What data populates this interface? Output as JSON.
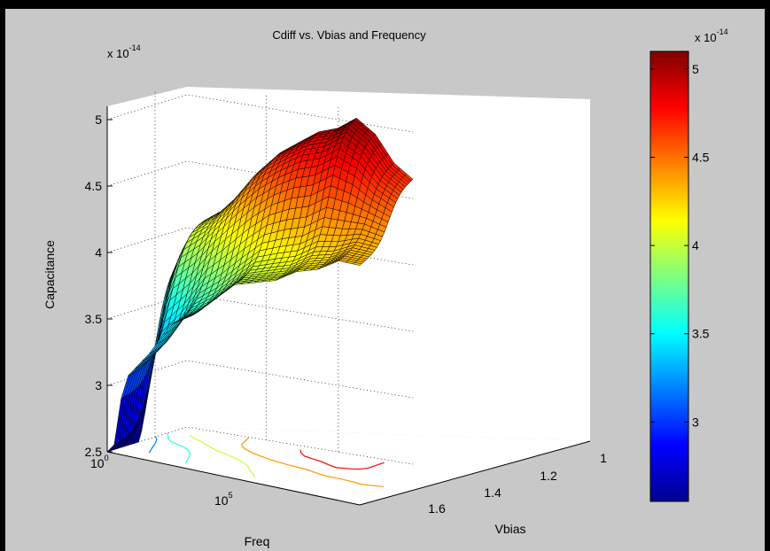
{
  "chart_data": {
    "type": "surface",
    "title": "Cdiff vs. Vbias and Frequency",
    "xlabel": "Vbias",
    "ylabel": "Freq",
    "zlabel": "Capacitance",
    "z_exponent_label": "x 10",
    "z_exponent_power": "-14",
    "x_ticks": [
      "1",
      "1.2",
      "1.4",
      "1.6"
    ],
    "y_ticks": [
      {
        "base": "10",
        "power": "0"
      },
      {
        "base": "10",
        "power": "5"
      }
    ],
    "z_ticks": [
      "2.5",
      "3",
      "3.5",
      "4",
      "4.5",
      "5"
    ],
    "zlim": [
      2.5,
      5.1
    ],
    "xlim": [
      1.0,
      1.6
    ],
    "colormap": "jet",
    "grid": true,
    "colorbar": {
      "ticks": [
        "3",
        "3.5",
        "4",
        "4.5",
        "5"
      ],
      "range": [
        2.55,
        5.1
      ],
      "exponent_label": "x 10",
      "exponent_power": "-14"
    },
    "surface_description_units": "capacitance x 1e-14 F",
    "approx_values": {
      "vbias": [
        1.6,
        1.55,
        1.5,
        1.45,
        1.4,
        1.35,
        1.3,
        1.25,
        1.2,
        1.15,
        1.1,
        1.05,
        1.0
      ],
      "capacitance_low_freq": [
        3.83,
        4.1,
        4.2,
        4.35,
        4.55,
        4.7,
        4.8,
        4.9,
        4.95,
        5.05,
        4.95,
        4.75,
        4.65
      ],
      "capacitance_high_freq": [
        2.55,
        3.1,
        3.3,
        3.55,
        3.65,
        3.8,
        3.95,
        4.0,
        4.05,
        4.15,
        4.2,
        4.3,
        4.3
      ]
    }
  }
}
